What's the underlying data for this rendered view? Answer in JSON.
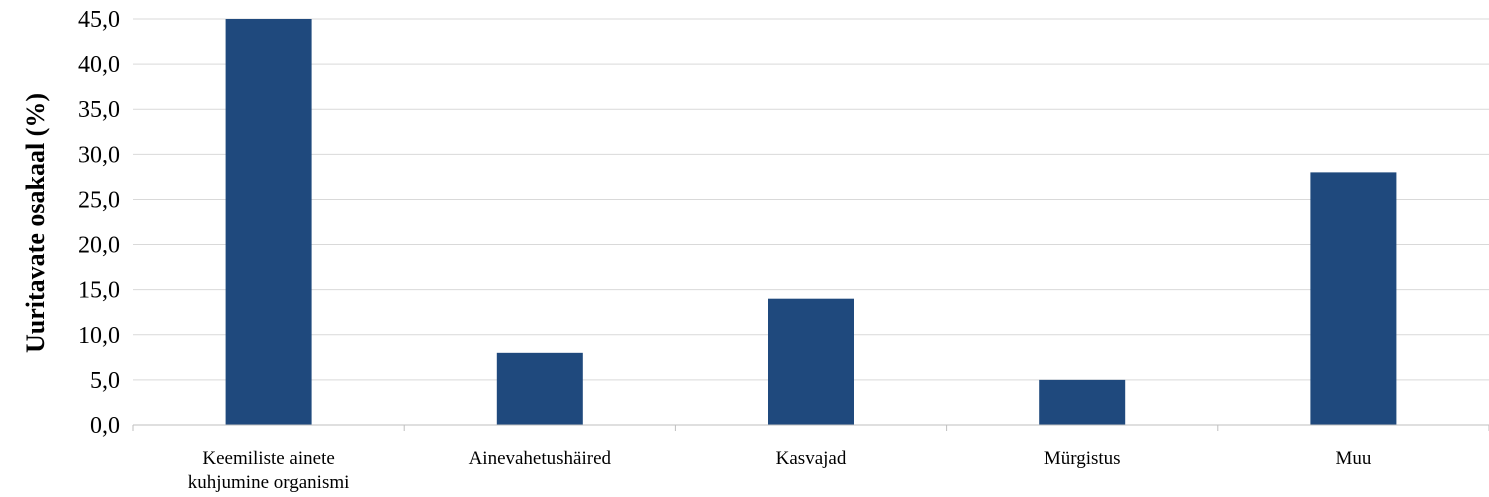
{
  "chart_data": {
    "type": "bar",
    "categories": [
      [
        "Keemiliste ainete",
        "kuhjumine organismi"
      ],
      [
        "Ainevahetushäired"
      ],
      [
        "Kasvajad"
      ],
      [
        "Mürgistus"
      ],
      [
        "Muu"
      ]
    ],
    "values": [
      45,
      8,
      14,
      5,
      28
    ],
    "ylabel": "Uuritavate osakaal (%)",
    "ylim": [
      0,
      45
    ],
    "yticks": [
      "0,0",
      "5,0",
      "10,0",
      "15,0",
      "20,0",
      "25,0",
      "30,0",
      "35,0",
      "40,0",
      "45,0"
    ],
    "grid": true,
    "bar_color": "#1f497d",
    "grid_color": "#d9d9d9"
  }
}
